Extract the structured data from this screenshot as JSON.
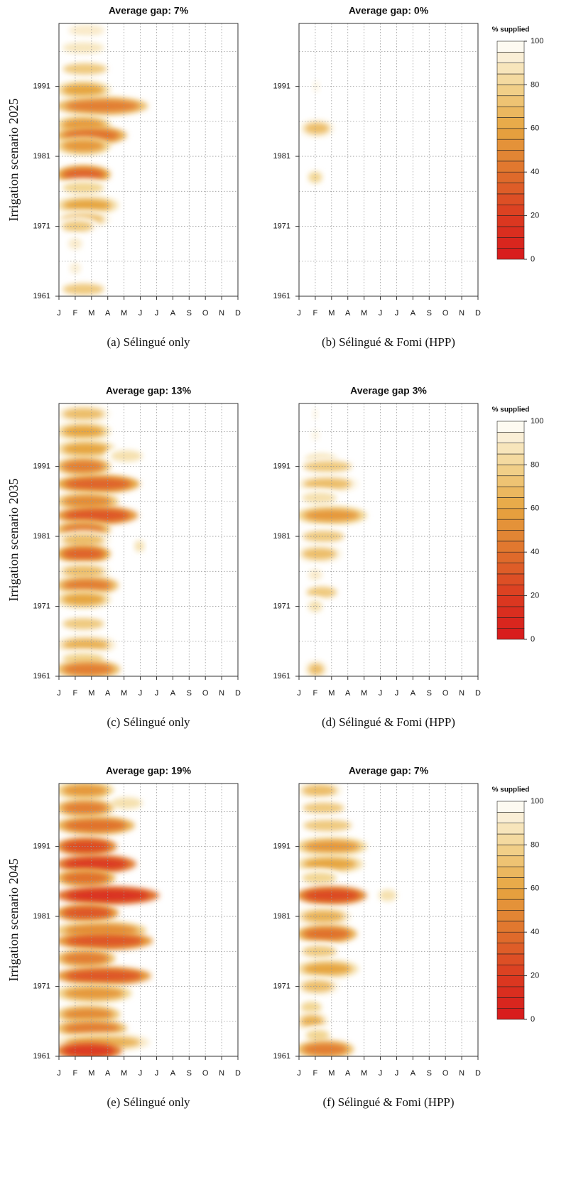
{
  "chart_data": [
    {
      "type": "contour",
      "title": "Average gap:  7%",
      "caption": "(a)  Sélingué only",
      "ylabel": "Irrigation scenario 2025",
      "xlim": [
        1,
        12
      ],
      "xticks": [
        {
          "value": 1,
          "label": "J"
        },
        {
          "value": 2,
          "label": "F"
        },
        {
          "value": 3,
          "label": "M"
        },
        {
          "value": 4,
          "label": "A"
        },
        {
          "value": 5,
          "label": "M"
        },
        {
          "value": 6,
          "label": "J"
        },
        {
          "value": 7,
          "label": "J"
        },
        {
          "value": 8,
          "label": "A"
        },
        {
          "value": 9,
          "label": "S"
        },
        {
          "value": 10,
          "label": "O"
        },
        {
          "value": 11,
          "label": "N"
        },
        {
          "value": 12,
          "label": "D"
        }
      ],
      "ylim": [
        1961,
        2000
      ],
      "yticks": [
        1961,
        1971,
        1981,
        1991
      ],
      "ygrid": [
        1966,
        1971,
        1976,
        1981,
        1986,
        1991,
        1996
      ],
      "y": [
        1999,
        1996.5,
        1993.5,
        1990.5,
        1988.2,
        1985.5,
        1984,
        1982.5,
        1978.4,
        1976.5,
        1974,
        1972,
        1971,
        1968.5,
        1965,
        1962
      ],
      "x_start": [
        1.4,
        1,
        1,
        1,
        1,
        1,
        1,
        1,
        1,
        1,
        1,
        1,
        1,
        1.5,
        1.6,
        1
      ],
      "x_end": [
        4,
        4,
        4.2,
        4,
        6.3,
        4,
        5,
        4,
        4,
        4,
        4.5,
        4,
        3.3,
        2.5,
        2.4,
        4
      ],
      "values": [
        90,
        88,
        75,
        60,
        45,
        55,
        40,
        55,
        35,
        80,
        60,
        70,
        75,
        90,
        92,
        75
      ]
    },
    {
      "type": "contour",
      "title": "Average gap: 0%",
      "caption": "(b)  Sélingué & Fomi (HPP)",
      "xlim": [
        1,
        12
      ],
      "xticks": [
        {
          "value": 1,
          "label": "J"
        },
        {
          "value": 2,
          "label": "F"
        },
        {
          "value": 3,
          "label": "M"
        },
        {
          "value": 4,
          "label": "A"
        },
        {
          "value": 5,
          "label": "M"
        },
        {
          "value": 6,
          "label": "J"
        },
        {
          "value": 7,
          "label": "J"
        },
        {
          "value": 8,
          "label": "A"
        },
        {
          "value": 9,
          "label": "S"
        },
        {
          "value": 10,
          "label": "O"
        },
        {
          "value": 11,
          "label": "N"
        },
        {
          "value": 12,
          "label": "D"
        }
      ],
      "ylim": [
        1961,
        2000
      ],
      "yticks": [
        1961,
        1971,
        1981,
        1991
      ],
      "ygrid": [
        1966,
        1971,
        1976,
        1981,
        1986,
        1991,
        1996
      ],
      "y": [
        1991,
        1985,
        1978
      ],
      "x_start": [
        1.8,
        1.2,
        1.5
      ],
      "x_end": [
        2.3,
        3,
        2.5
      ],
      "values": [
        95,
        70,
        80
      ],
      "colorbar": {
        "label": "% supplied",
        "ylim": [
          0,
          100
        ],
        "ticks": [
          0,
          20,
          40,
          60,
          80,
          100
        ],
        "level_step": 5,
        "color_stops": [
          {
            "value": 0,
            "color": "#d7191c"
          },
          {
            "value": 20,
            "color": "#db3b21"
          },
          {
            "value": 40,
            "color": "#e0712c"
          },
          {
            "value": 60,
            "color": "#e6a540"
          },
          {
            "value": 80,
            "color": "#f2d592"
          },
          {
            "value": 100,
            "color": "#ffffff"
          }
        ]
      }
    },
    {
      "type": "contour",
      "title": "Average gap: 13%",
      "caption": "(c)  Sélingué only",
      "ylabel": "Irrigation scenario 2035",
      "xlim": [
        1,
        12
      ],
      "xticks": [
        {
          "value": 1,
          "label": "J"
        },
        {
          "value": 2,
          "label": "F"
        },
        {
          "value": 3,
          "label": "M"
        },
        {
          "value": 4,
          "label": "A"
        },
        {
          "value": 5,
          "label": "M"
        },
        {
          "value": 6,
          "label": "J"
        },
        {
          "value": 7,
          "label": "J"
        },
        {
          "value": 8,
          "label": "A"
        },
        {
          "value": 9,
          "label": "S"
        },
        {
          "value": 10,
          "label": "O"
        },
        {
          "value": 11,
          "label": "N"
        },
        {
          "value": 12,
          "label": "D"
        }
      ],
      "ylim": [
        1961,
        2000
      ],
      "yticks": [
        1961,
        1971,
        1981,
        1991
      ],
      "ygrid": [
        1966,
        1971,
        1976,
        1981,
        1986,
        1991,
        1996
      ],
      "y": [
        1998.5,
        1996,
        1993.5,
        1992.5,
        1991,
        1988.5,
        1986,
        1984,
        1982,
        1980.5,
        1979.6,
        1978.5,
        1976,
        1974,
        1972,
        1968.5,
        1965.5,
        1963.5,
        1962
      ],
      "x_start": [
        1,
        1,
        1,
        4,
        1,
        1,
        1,
        1,
        1,
        1,
        5.6,
        1,
        1,
        1,
        1,
        1,
        1,
        1,
        1
      ],
      "x_end": [
        4,
        4,
        4.3,
        6.3,
        4,
        5.8,
        4.5,
        5.7,
        4,
        4,
        6.3,
        4,
        4,
        4.5,
        4,
        4,
        4.3,
        4,
        4.6
      ],
      "values": [
        70,
        60,
        60,
        85,
        45,
        35,
        50,
        30,
        45,
        70,
        85,
        35,
        70,
        45,
        60,
        75,
        65,
        80,
        45
      ]
    },
    {
      "type": "contour",
      "title": "Average gap 3%",
      "caption": "(d)  Sélingué & Fomi (HPP)",
      "xlim": [
        1,
        12
      ],
      "xticks": [
        {
          "value": 1,
          "label": "J"
        },
        {
          "value": 2,
          "label": "F"
        },
        {
          "value": 3,
          "label": "M"
        },
        {
          "value": 4,
          "label": "A"
        },
        {
          "value": 5,
          "label": "M"
        },
        {
          "value": 6,
          "label": "J"
        },
        {
          "value": 7,
          "label": "J"
        },
        {
          "value": 8,
          "label": "A"
        },
        {
          "value": 9,
          "label": "S"
        },
        {
          "value": 10,
          "label": "O"
        },
        {
          "value": 11,
          "label": "N"
        },
        {
          "value": 12,
          "label": "D"
        }
      ],
      "ylim": [
        1961,
        2000
      ],
      "yticks": [
        1961,
        1971,
        1981,
        1991
      ],
      "ygrid": [
        1966,
        1971,
        1976,
        1981,
        1986,
        1991,
        1996
      ],
      "y": [
        1998.5,
        1995.5,
        1992,
        1991,
        1988.5,
        1986.5,
        1984,
        1981,
        1978.5,
        1975.5,
        1973,
        1971,
        1962
      ],
      "x_start": [
        1.8,
        1.7,
        1.2,
        1,
        1,
        1,
        1,
        1,
        1,
        1.5,
        1.3,
        1.5,
        1.5
      ],
      "x_end": [
        2.2,
        2.3,
        3.5,
        4.5,
        4.5,
        3.5,
        5,
        4,
        3.5,
        2.5,
        3.5,
        2.5,
        2.6
      ],
      "values": [
        95,
        95,
        85,
        75,
        70,
        85,
        55,
        75,
        70,
        90,
        75,
        85,
        70
      ],
      "colorbar": {
        "label": "% supplied",
        "ylim": [
          0,
          100
        ],
        "ticks": [
          0,
          20,
          40,
          60,
          80,
          100
        ],
        "level_step": 5,
        "color_stops": [
          {
            "value": 0,
            "color": "#d7191c"
          },
          {
            "value": 20,
            "color": "#db3b21"
          },
          {
            "value": 40,
            "color": "#e0712c"
          },
          {
            "value": 60,
            "color": "#e6a540"
          },
          {
            "value": 80,
            "color": "#f2d592"
          },
          {
            "value": 100,
            "color": "#ffffff"
          }
        ]
      }
    },
    {
      "type": "contour",
      "title": "Average gap: 19%",
      "caption": "(e)  Sélingué only",
      "ylabel": "Irrigation scenario 2045",
      "xlim": [
        1,
        12
      ],
      "xticks": [
        {
          "value": 1,
          "label": "J"
        },
        {
          "value": 2,
          "label": "F"
        },
        {
          "value": 3,
          "label": "M"
        },
        {
          "value": 4,
          "label": "A"
        },
        {
          "value": 5,
          "label": "M"
        },
        {
          "value": 6,
          "label": "J"
        },
        {
          "value": 7,
          "label": "J"
        },
        {
          "value": 8,
          "label": "A"
        },
        {
          "value": 9,
          "label": "S"
        },
        {
          "value": 10,
          "label": "O"
        },
        {
          "value": 11,
          "label": "N"
        },
        {
          "value": 12,
          "label": "D"
        }
      ],
      "ylim": [
        1961,
        2000
      ],
      "yticks": [
        1961,
        1971,
        1981,
        1991
      ],
      "ygrid": [
        1966,
        1971,
        1976,
        1981,
        1986,
        1991,
        1996
      ],
      "y": [
        1999,
        1997.2,
        1996.5,
        1994,
        1991,
        1988.5,
        1986.5,
        1984,
        1981.5,
        1979,
        1977.5,
        1975,
        1972.5,
        1970,
        1967,
        1965,
        1963,
        1961.8
      ],
      "x_start": [
        1,
        4,
        1,
        1,
        1,
        1,
        1,
        1,
        1,
        1,
        1,
        1,
        1,
        1,
        1,
        1,
        1,
        1
      ],
      "x_end": [
        4.2,
        6.3,
        4.2,
        5.5,
        4.4,
        5.6,
        4.3,
        7,
        4.5,
        6.2,
        6.6,
        4.3,
        6.5,
        5.3,
        4.6,
        5,
        6.4,
        4.7
      ],
      "values": [
        55,
        85,
        45,
        40,
        25,
        20,
        40,
        15,
        30,
        50,
        30,
        45,
        30,
        55,
        50,
        45,
        65,
        20
      ]
    },
    {
      "type": "contour",
      "title": "Average gap: 7%",
      "caption": "(f)  Sélingué & Fomi (HPP)",
      "xlim": [
        1,
        12
      ],
      "xticks": [
        {
          "value": 1,
          "label": "J"
        },
        {
          "value": 2,
          "label": "F"
        },
        {
          "value": 3,
          "label": "M"
        },
        {
          "value": 4,
          "label": "A"
        },
        {
          "value": 5,
          "label": "M"
        },
        {
          "value": 6,
          "label": "J"
        },
        {
          "value": 7,
          "label": "J"
        },
        {
          "value": 8,
          "label": "A"
        },
        {
          "value": 9,
          "label": "S"
        },
        {
          "value": 10,
          "label": "O"
        },
        {
          "value": 11,
          "label": "N"
        },
        {
          "value": 12,
          "label": "D"
        }
      ],
      "ylim": [
        1961,
        2000
      ],
      "yticks": [
        1961,
        1971,
        1981,
        1991
      ],
      "ygrid": [
        1966,
        1971,
        1976,
        1981,
        1986,
        1991,
        1996
      ],
      "y": [
        1999,
        1996.5,
        1994,
        1991,
        1988.5,
        1986.5,
        1984,
        1984,
        1981,
        1978.5,
        1976,
        1973.5,
        1971,
        1968,
        1966,
        1964,
        1962
      ],
      "x_start": [
        1,
        1,
        1,
        1,
        1,
        1,
        1,
        5.8,
        1,
        1,
        1,
        1,
        1,
        1,
        1,
        1.3,
        1
      ],
      "x_end": [
        3.5,
        4,
        4.5,
        5,
        4.8,
        3.5,
        5,
        7.1,
        4,
        4.4,
        3.5,
        4.5,
        3.3,
        2.5,
        2.6,
        3,
        4.2
      ],
      "values": [
        70,
        75,
        75,
        55,
        60,
        80,
        25,
        85,
        65,
        40,
        75,
        60,
        70,
        80,
        65,
        80,
        45
      ],
      "colorbar": {
        "label": "% supplied",
        "ylim": [
          0,
          100
        ],
        "ticks": [
          0,
          20,
          40,
          60,
          80,
          100
        ],
        "level_step": 5,
        "color_stops": [
          {
            "value": 0,
            "color": "#d7191c"
          },
          {
            "value": 20,
            "color": "#db3b21"
          },
          {
            "value": 40,
            "color": "#e0712c"
          },
          {
            "value": 60,
            "color": "#e6a540"
          },
          {
            "value": 80,
            "color": "#f2d592"
          },
          {
            "value": 100,
            "color": "#ffffff"
          }
        ]
      }
    }
  ]
}
